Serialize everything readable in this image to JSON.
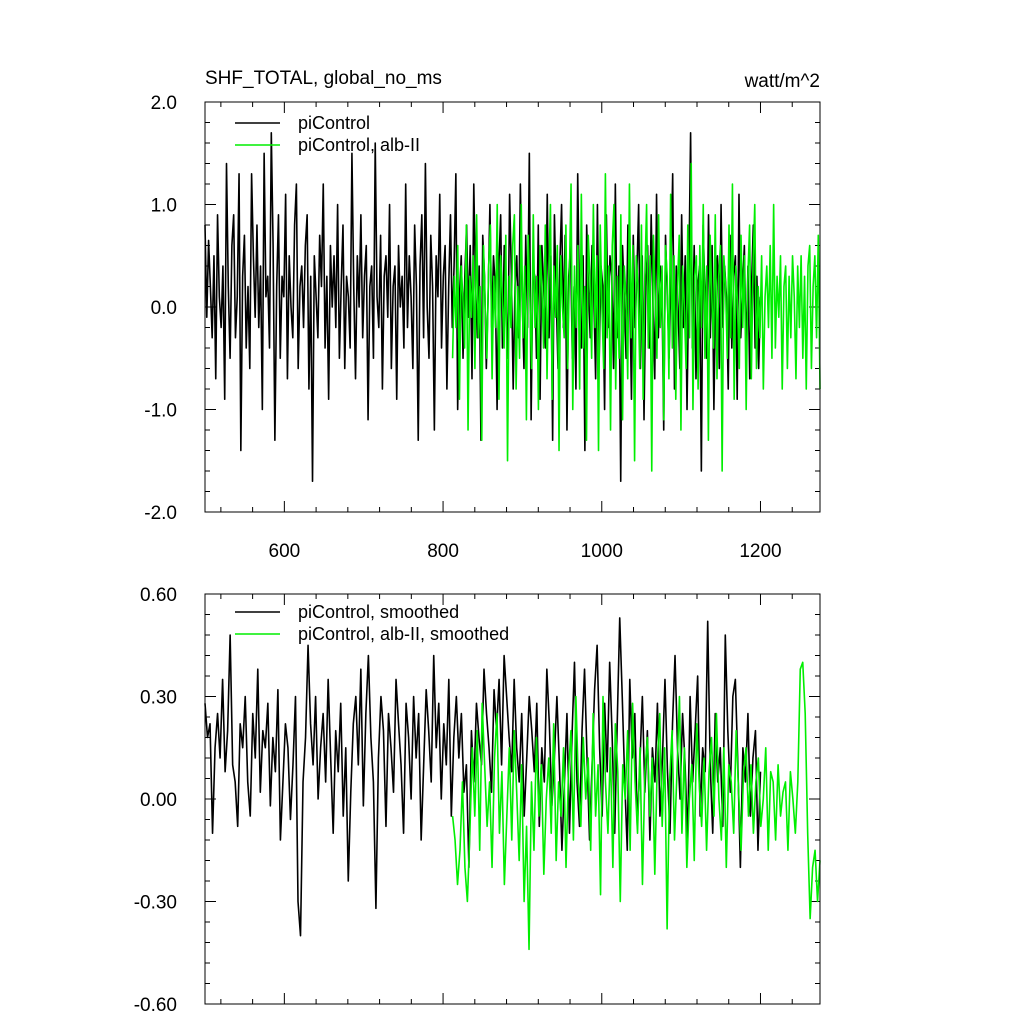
{
  "chart_data": [
    {
      "type": "line",
      "title": "SHF_TOTAL, global_no_ms",
      "units": "watt/m^2",
      "xlim": [
        500,
        1275
      ],
      "ylim": [
        -2.0,
        2.0
      ],
      "x_ticks": [
        600,
        800,
        1000,
        1200
      ],
      "x_tick_labels": [
        "600",
        "800",
        "1000",
        "1200"
      ],
      "y_ticks": [
        -2.0,
        -1.0,
        0.0,
        1.0,
        2.0
      ],
      "y_tick_labels": [
        "-2.0",
        "-1.0",
        "0.0",
        "1.0",
        "2.0"
      ],
      "grid": false,
      "legend_position": "top-left",
      "series": [
        {
          "name": "piControl",
          "color": "#000000",
          "x_start": 500,
          "x_end": 1200,
          "values": [
            0.8,
            -0.1,
            0.65,
            0.2,
            -0.3,
            0.5,
            -0.7,
            0.9,
            0.1,
            -0.2,
            0.4,
            -0.9,
            1.4,
            0.2,
            -0.5,
            0.6,
            0.9,
            -0.3,
            0.1,
            1.3,
            -1.4,
            0.3,
            0.7,
            -0.4,
            0.2,
            -0.6,
            1.3,
            0.5,
            -0.1,
            0.8,
            -0.2,
            0.4,
            -1.0,
            1.5,
            0.1,
            0.3,
            -0.4,
            1.7,
            0.6,
            -1.3,
            0.2,
            0.9,
            -0.5,
            0.3,
            0.1,
            1.1,
            -0.7,
            0.5,
            0.0,
            -0.3,
            0.8,
            1.2,
            -0.6,
            0.2,
            0.4,
            -0.2,
            0.6,
            0.9,
            -0.8,
            0.3,
            -1.7,
            0.5,
            0.1,
            -0.3,
            0.7,
            0.2,
            1.2,
            -0.4,
            0.3,
            -0.9,
            0.6,
            0.0,
            0.5,
            -0.2,
            1.0,
            -0.5,
            0.2,
            0.8,
            -0.6,
            0.3,
            0.1,
            -0.4,
            1.5,
            0.2,
            -0.7,
            0.5,
            0.0,
            0.9,
            -0.3,
            0.3,
            0.6,
            -1.1,
            0.2,
            0.4,
            -0.5,
            1.6,
            0.1,
            -0.2,
            0.7,
            -0.8,
            0.3,
            0.5,
            -0.1,
            1.0,
            -0.6,
            0.2,
            0.4,
            -0.9,
            0.6,
            0.0,
            0.3,
            -0.4,
            1.2,
            -0.2,
            0.5,
            0.1,
            -0.6,
            0.8,
            0.2,
            -1.3,
            0.4,
            0.9,
            -0.3,
            1.4,
            0.0,
            -0.5,
            0.7,
            0.2,
            -1.2,
            0.5,
            0.1,
            1.1,
            -0.4,
            0.3,
            0.6,
            -0.8,
            0.2,
            0.9,
            -0.2,
            0.4,
            1.3,
            -1.0,
            0.1,
            0.5,
            -0.5,
            0.3,
            0.8,
            -0.1,
            0.6,
            -0.7,
            1.2,
            0.2,
            -0.3,
            0.4,
            -1.3,
            0.7,
            0.3,
            -0.6,
            0.1,
            1.0,
            -0.2,
            0.5,
            0.2,
            -1.0,
            0.4,
            0.9,
            -0.4,
            0.6,
            0.0,
            -0.5,
            1.1,
            0.3,
            -0.8,
            0.2,
            0.5,
            -0.3,
            1.2,
            0.1,
            -0.6,
            0.7,
            -0.2,
            1.5,
            -1.1,
            0.4,
            0.3,
            -0.5,
            0.8,
            -0.9,
            0.6,
            0.2,
            -0.4,
            1.1,
            -0.3,
            0.5,
            -1.3,
            0.9,
            0.1,
            -0.6,
            0.4,
            1.0,
            -0.2,
            0.7,
            -1.2,
            0.3,
            0.6,
            -0.5,
            0.2,
            -0.8,
            1.3,
            0.0,
            -0.4,
            0.5,
            -1.4,
            0.8,
            0.2,
            -0.3,
            0.6,
            0.1,
            -0.7,
            1.0,
            -0.5,
            0.4,
            0.2,
            -1.0,
            0.9,
            -0.2,
            0.5,
            0.3,
            -0.6,
            1.2,
            -0.3,
            0.4,
            -1.7,
            0.6,
            0.1,
            -0.5,
            0.8,
            0.2,
            -0.9,
            0.7,
            -0.2,
            0.3,
            1.0,
            -0.6,
            0.5,
            -1.1,
            0.2,
            0.6,
            -0.4,
            0.9,
            0.0,
            -0.7,
            1.1,
            -0.3,
            0.4,
            0.2,
            -1.2,
            0.7,
            0.1,
            -0.5,
            0.3,
            1.3,
            -0.8,
            0.4,
            0.0,
            -0.6,
            0.9,
            -0.2,
            0.5,
            -1.0,
            0.3,
            1.7,
            -0.4,
            0.6,
            -0.7,
            0.2,
            0.4,
            -1.6,
            0.8,
            0.1,
            -0.5,
            0.9,
            -0.3,
            0.6,
            -1.0,
            0.2,
            0.5,
            -0.6,
            1.0,
            -0.2,
            0.4,
            0.1,
            -0.8,
            0.7,
            -0.4,
            0.3,
            0.5,
            -0.9,
            1.1,
            -0.3,
            0.2,
            0.6,
            -0.5,
            0.4,
            -0.7,
            0.2,
            0.8,
            -0.4,
            0.3,
            -0.6,
            0.1
          ]
        },
        {
          "name": "piControl, alb-II",
          "color": "#00ee00",
          "x_start": 812,
          "x_end": 1275,
          "values": [
            -0.5,
            0.3,
            -0.2,
            0.6,
            -0.9,
            0.4,
            0.1,
            -0.4,
            0.8,
            -1.2,
            0.3,
            -0.1,
            0.5,
            -0.6,
            0.9,
            -0.3,
            0.2,
            -1.3,
            0.6,
            0.0,
            -0.5,
            0.4,
            0.8,
            -0.7,
            0.3,
            -0.2,
            1.0,
            -0.9,
            0.5,
            0.1,
            -0.4,
            0.7,
            -1.5,
            0.3,
            -0.2,
            0.6,
            0.9,
            -0.8,
            0.2,
            -0.5,
            1.0,
            -0.3,
            0.4,
            -1.1,
            0.7,
            0.1,
            -0.6,
            0.9,
            -0.2,
            0.3,
            -1.0,
            0.6,
            0.2,
            -0.4,
            0.8,
            -0.7,
            0.3,
            1.0,
            -0.9,
            0.4,
            -0.1,
            0.6,
            -1.4,
            0.5,
            0.0,
            -0.3,
            0.8,
            -0.6,
            0.3,
            1.2,
            -1.0,
            0.4,
            -0.2,
            0.6,
            -0.8,
            1.1,
            -0.4,
            0.2,
            -1.3,
            0.7,
            0.3,
            -0.5,
            1.0,
            -0.2,
            0.5,
            -1.4,
            0.8,
            0.0,
            -0.6,
            1.3,
            -0.3,
            0.4,
            -1.2,
            0.6,
            1.0,
            -0.8,
            0.3,
            -0.5,
            0.9,
            -1.1,
            0.4,
            0.1,
            -0.7,
            1.2,
            -0.3,
            0.6,
            -1.5,
            0.5,
            0.2,
            -0.6,
            0.8,
            -0.9,
            0.3,
            1.0,
            -0.4,
            0.5,
            -1.6,
            0.7,
            0.1,
            -0.5,
            0.9,
            -0.2,
            0.4,
            -1.1,
            0.6,
            0.3,
            -0.7,
            1.1,
            -0.4,
            0.5,
            -0.9,
            0.2,
            0.7,
            -1.2,
            0.4,
            0.0,
            -0.6,
            0.8,
            -0.3,
            1.4,
            -1.0,
            0.3,
            0.5,
            -0.8,
            0.6,
            -0.2,
            1.0,
            -0.5,
            0.4,
            -1.3,
            0.7,
            0.1,
            -0.4,
            0.9,
            -0.7,
            0.3,
            0.6,
            -1.6,
            0.5,
            0.2,
            -0.5,
            0.8,
            -0.3,
            1.2,
            -0.9,
            0.4,
            0.0,
            -0.6,
            0.7,
            -0.2,
            0.5,
            -1.0,
            0.3,
            0.8,
            -0.7,
            0.4,
            1.0,
            -0.6,
            0.2,
            -0.3,
            0.5,
            -0.8,
            0.1,
            0.4,
            -0.2,
            0.6,
            -0.5,
            1.0,
            -0.4,
            0.3,
            -0.1,
            0.5,
            -0.8,
            0.2,
            0.4,
            -0.6,
            0.3,
            -0.3,
            0.5,
            0.1,
            -0.7,
            0.4,
            -0.2,
            0.5,
            -0.5,
            0.3,
            -0.8,
            0.4,
            0.6,
            -0.6,
            0.2,
            0.5,
            -0.3,
            0.7,
            -0.8
          ]
        }
      ]
    },
    {
      "type": "line",
      "xlim": [
        500,
        1275
      ],
      "ylim": [
        -0.6,
        0.6
      ],
      "x_ticks": [
        600,
        800,
        1000,
        1200
      ],
      "y_ticks": [
        -0.6,
        -0.3,
        0.0,
        0.3,
        0.6
      ],
      "y_tick_labels": [
        "-0.60",
        "-0.30",
        "0.00",
        "0.30",
        "0.60"
      ],
      "grid": false,
      "legend_position": "top-left",
      "series": [
        {
          "name": "piControl, smoothed",
          "color": "#000000",
          "x_start": 500,
          "x_end": 1200,
          "values": [
            0.28,
            0.18,
            0.22,
            -0.1,
            0.15,
            0.25,
            0.12,
            0.35,
            0.08,
            0.2,
            0.48,
            0.1,
            0.05,
            -0.08,
            0.22,
            0.15,
            0.3,
            0.05,
            -0.05,
            0.25,
            0.12,
            0.38,
            0.02,
            0.2,
            0.15,
            0.28,
            -0.02,
            0.18,
            0.08,
            0.32,
            -0.12,
            0.05,
            0.22,
            0.15,
            -0.06,
            0.1,
            0.3,
            -0.3,
            -0.4,
            0.05,
            0.18,
            0.45,
            0.22,
            0.1,
            0.3,
            0.0,
            0.15,
            0.25,
            0.05,
            0.35,
            0.12,
            -0.1,
            0.2,
            0.08,
            0.28,
            -0.05,
            0.15,
            -0.24,
            0.02,
            0.22,
            0.3,
            0.1,
            0.38,
            -0.02,
            0.25,
            0.42,
            0.18,
            0.05,
            -0.32,
            0.12,
            0.3,
            0.2,
            -0.08,
            0.25,
            0.15,
            0.02,
            0.35,
            0.22,
            0.1,
            -0.1,
            0.28,
            0.18,
            0.0,
            0.3,
            0.12,
            0.25,
            -0.12,
            0.1,
            0.32,
            0.2,
            0.05,
            0.42,
            0.15,
            0.28,
            0.0,
            0.22,
            0.1,
            0.35,
            -0.05,
            0.18,
            0.3,
            0.12,
            0.25,
            0.02,
            0.1,
            -0.2,
            0.2,
            0.05,
            0.28,
            0.18,
            0.1,
            0.38,
            0.25,
            0.15,
            0.02,
            0.32,
            0.2,
            0.35,
            0.1,
            0.42,
            0.3,
            0.18,
            0.08,
            0.35,
            0.15,
            0.05,
            0.25,
            -0.05,
            0.12,
            0.3,
            0.2,
            0.08,
            0.28,
            -0.08,
            0.15,
            0.05,
            0.38,
            0.22,
            -0.02,
            0.12,
            0.3,
            0.1,
            -0.15,
            0.05,
            0.25,
            -0.1,
            0.18,
            0.4,
            0.05,
            -0.08,
            0.2,
            0.38,
            0.12,
            -0.12,
            0.1,
            0.32,
            0.45,
            0.15,
            -0.05,
            0.28,
            0.08,
            0.4,
            0.18,
            -0.1,
            0.22,
            0.53,
            0.3,
            0.05,
            -0.15,
            0.35,
            0.12,
            0.25,
            -0.08,
            0.1,
            0.3,
            0.02,
            0.2,
            -0.12,
            0.15,
            0.05,
            0.28,
            -0.05,
            0.12,
            0.35,
            0.08,
            -0.1,
            0.22,
            0.42,
            0.15,
            0.0,
            0.25,
            0.1,
            -0.12,
            0.3,
            0.05,
            0.2,
            0.36,
            -0.05,
            0.15,
            0.08,
            0.52,
            0.1,
            -0.1,
            0.25,
            0.05,
            0.15,
            -0.08,
            0.48,
            0.2,
            0.02,
            0.3,
            0.35,
            0.1,
            -0.2,
            0.15,
            0.05,
            0.25,
            -0.05,
            0.12,
            0.2,
            -0.15,
            0.08
          ]
        },
        {
          "name": "piControl, alb-II, smoothed",
          "color": "#00ee00",
          "x_start": 812,
          "x_end": 1275,
          "values": [
            -0.05,
            -0.12,
            -0.25,
            -0.15,
            0.05,
            -0.2,
            -0.3,
            -0.1,
            0.15,
            -0.05,
            0.2,
            -0.15,
            0.28,
            0.1,
            -0.08,
            0.05,
            -0.2,
            0.12,
            0.25,
            -0.1,
            0.08,
            -0.25,
            -0.05,
            0.15,
            -0.12,
            0.2,
            0.02,
            -0.18,
            0.1,
            -0.3,
            -0.08,
            -0.44,
            0.05,
            -0.15,
            0.18,
            -0.05,
            0.1,
            -0.22,
            0.0,
            0.12,
            -0.1,
            0.22,
            -0.18,
            0.05,
            -0.05,
            0.15,
            -0.2,
            0.08,
            0.2,
            -0.12,
            0.3,
            0.05,
            -0.08,
            0.18,
            0.0,
            0.12,
            -0.15,
            0.25,
            -0.05,
            0.1,
            -0.28,
            0.3,
            0.05,
            -0.1,
            0.15,
            -0.2,
            0.22,
            0.08,
            -0.3,
            0.1,
            0.0,
            0.2,
            -0.15,
            0.28,
            0.05,
            -0.1,
            0.15,
            -0.25,
            0.08,
            0.18,
            -0.05,
            0.12,
            -0.22,
            0.1,
            0.25,
            -0.08,
            0.15,
            -0.38,
            0.05,
            0.2,
            -0.12,
            0.08,
            0.3,
            -0.1,
            0.15,
            -0.2,
            0.0,
            0.1,
            -0.18,
            0.22,
            0.05,
            -0.08,
            0.12,
            -0.15,
            0.08,
            0.18,
            -0.05,
            0.25,
            0.0,
            -0.12,
            0.15,
            -0.2,
            0.1,
            0.05,
            -0.1,
            0.2,
            0.02,
            -0.15,
            0.08,
            0.15,
            -0.05,
            0.1,
            -0.1,
            0.05,
            0.12,
            -0.08,
            0.0,
            0.15,
            -0.15,
            0.08,
            0.05,
            -0.12,
            0.1,
            -0.05,
            0.02,
            0.05,
            -0.15,
            0.08,
            0.0,
            -0.1,
            0.05,
            0.38,
            0.4,
            0.25,
            -0.1,
            -0.35,
            -0.2,
            -0.15,
            -0.3,
            -0.18
          ]
        }
      ]
    }
  ]
}
